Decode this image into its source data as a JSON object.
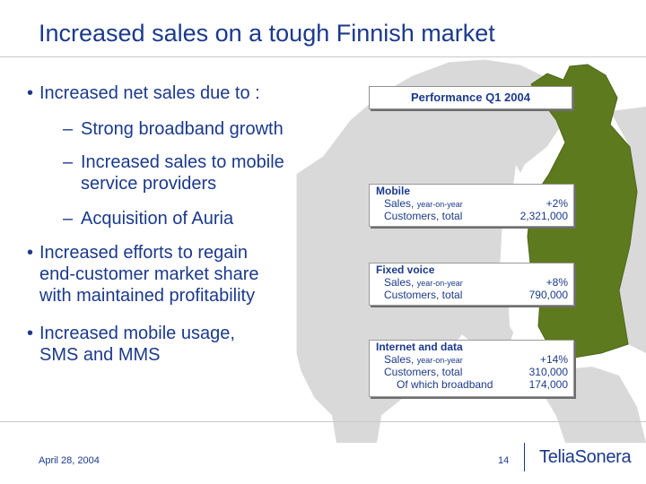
{
  "title": "Increased sales on a tough Finnish market",
  "bullets": {
    "b1": "Increased net sales due to :",
    "sub1": "Strong broadband growth",
    "sub2_line1": "Increased sales to mobile",
    "sub2_line2": "service providers",
    "sub3": "Acquisition of Auria",
    "b2_line1": "Increased efforts to regain",
    "b2_line2": "end-customer market share",
    "b2_line3": "with maintained profitability",
    "b3_line1": "Increased mobile usage,",
    "b3_line2": "SMS and MMS",
    "bullet_glyph": "•",
    "dash_glyph": "–"
  },
  "performance": {
    "title": "Performance Q1 2004",
    "mobile": {
      "heading": "Mobile",
      "sales_label": "Sales,",
      "sales_note": "year-on-year",
      "sales_value": "+2%",
      "customers_label": "Customers, total",
      "customers_value": "2,321,000"
    },
    "fixed": {
      "heading": "Fixed voice",
      "sales_label": "Sales,",
      "sales_note": "year-on-year",
      "sales_value": "+8%",
      "customers_label": "Customers, total",
      "customers_value": "790,000"
    },
    "internet": {
      "heading": "Internet and data",
      "sales_label": "Sales,",
      "sales_note": "year-on-year",
      "sales_value": "+14%",
      "customers_label": "Customers, total",
      "customers_value": "310,000",
      "broadband_label": "Of which broadband",
      "broadband_value": "174,000"
    }
  },
  "footer": {
    "date": "April 28, 2004",
    "page": "14",
    "logo": "TeliaSonera"
  },
  "colors": {
    "text": "#1b3a8c",
    "finland": "#5e7a1e",
    "land": "#d9d9d9",
    "sea": "#ffffff"
  }
}
